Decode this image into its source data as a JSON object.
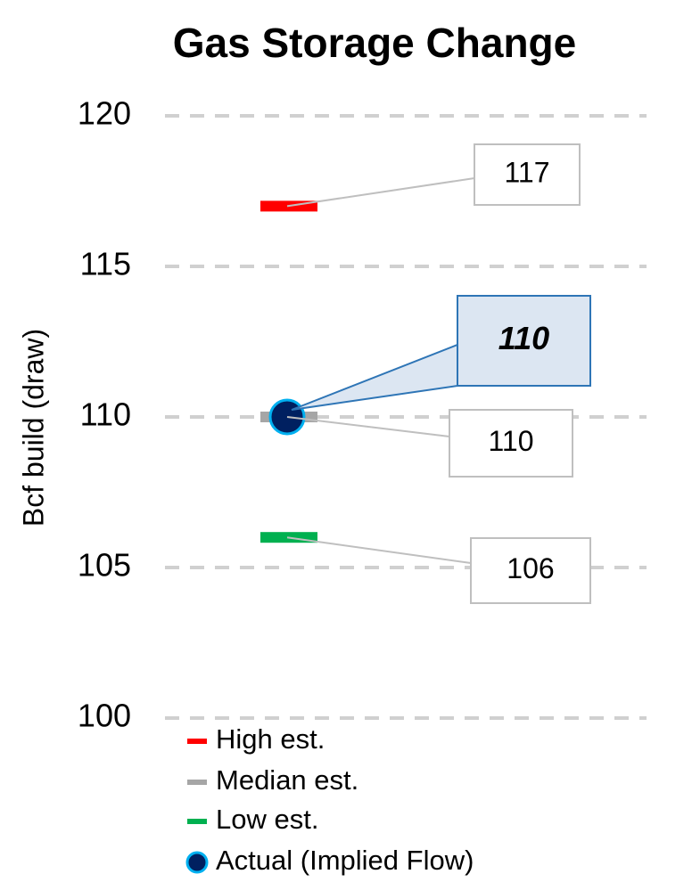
{
  "chart_data": {
    "type": "strip",
    "title": "Gas Storage Change",
    "y_label": "Bcf build (draw)",
    "ylim": [
      100,
      120
    ],
    "yticks": [
      100,
      105,
      110,
      115,
      120
    ],
    "grid": true,
    "series": [
      {
        "name": "High est.",
        "color": "#ff0000",
        "marker": "dash",
        "values": [
          117
        ]
      },
      {
        "name": "Median est.",
        "color": "#a6a6a6",
        "marker": "dash",
        "values": [
          110
        ]
      },
      {
        "name": "Low est.",
        "color": "#00b050",
        "marker": "dash",
        "values": [
          106
        ]
      },
      {
        "name": "Actual (Implied Flow)",
        "color": "#002060",
        "marker": "circle",
        "values": [
          110
        ]
      }
    ]
  }
}
